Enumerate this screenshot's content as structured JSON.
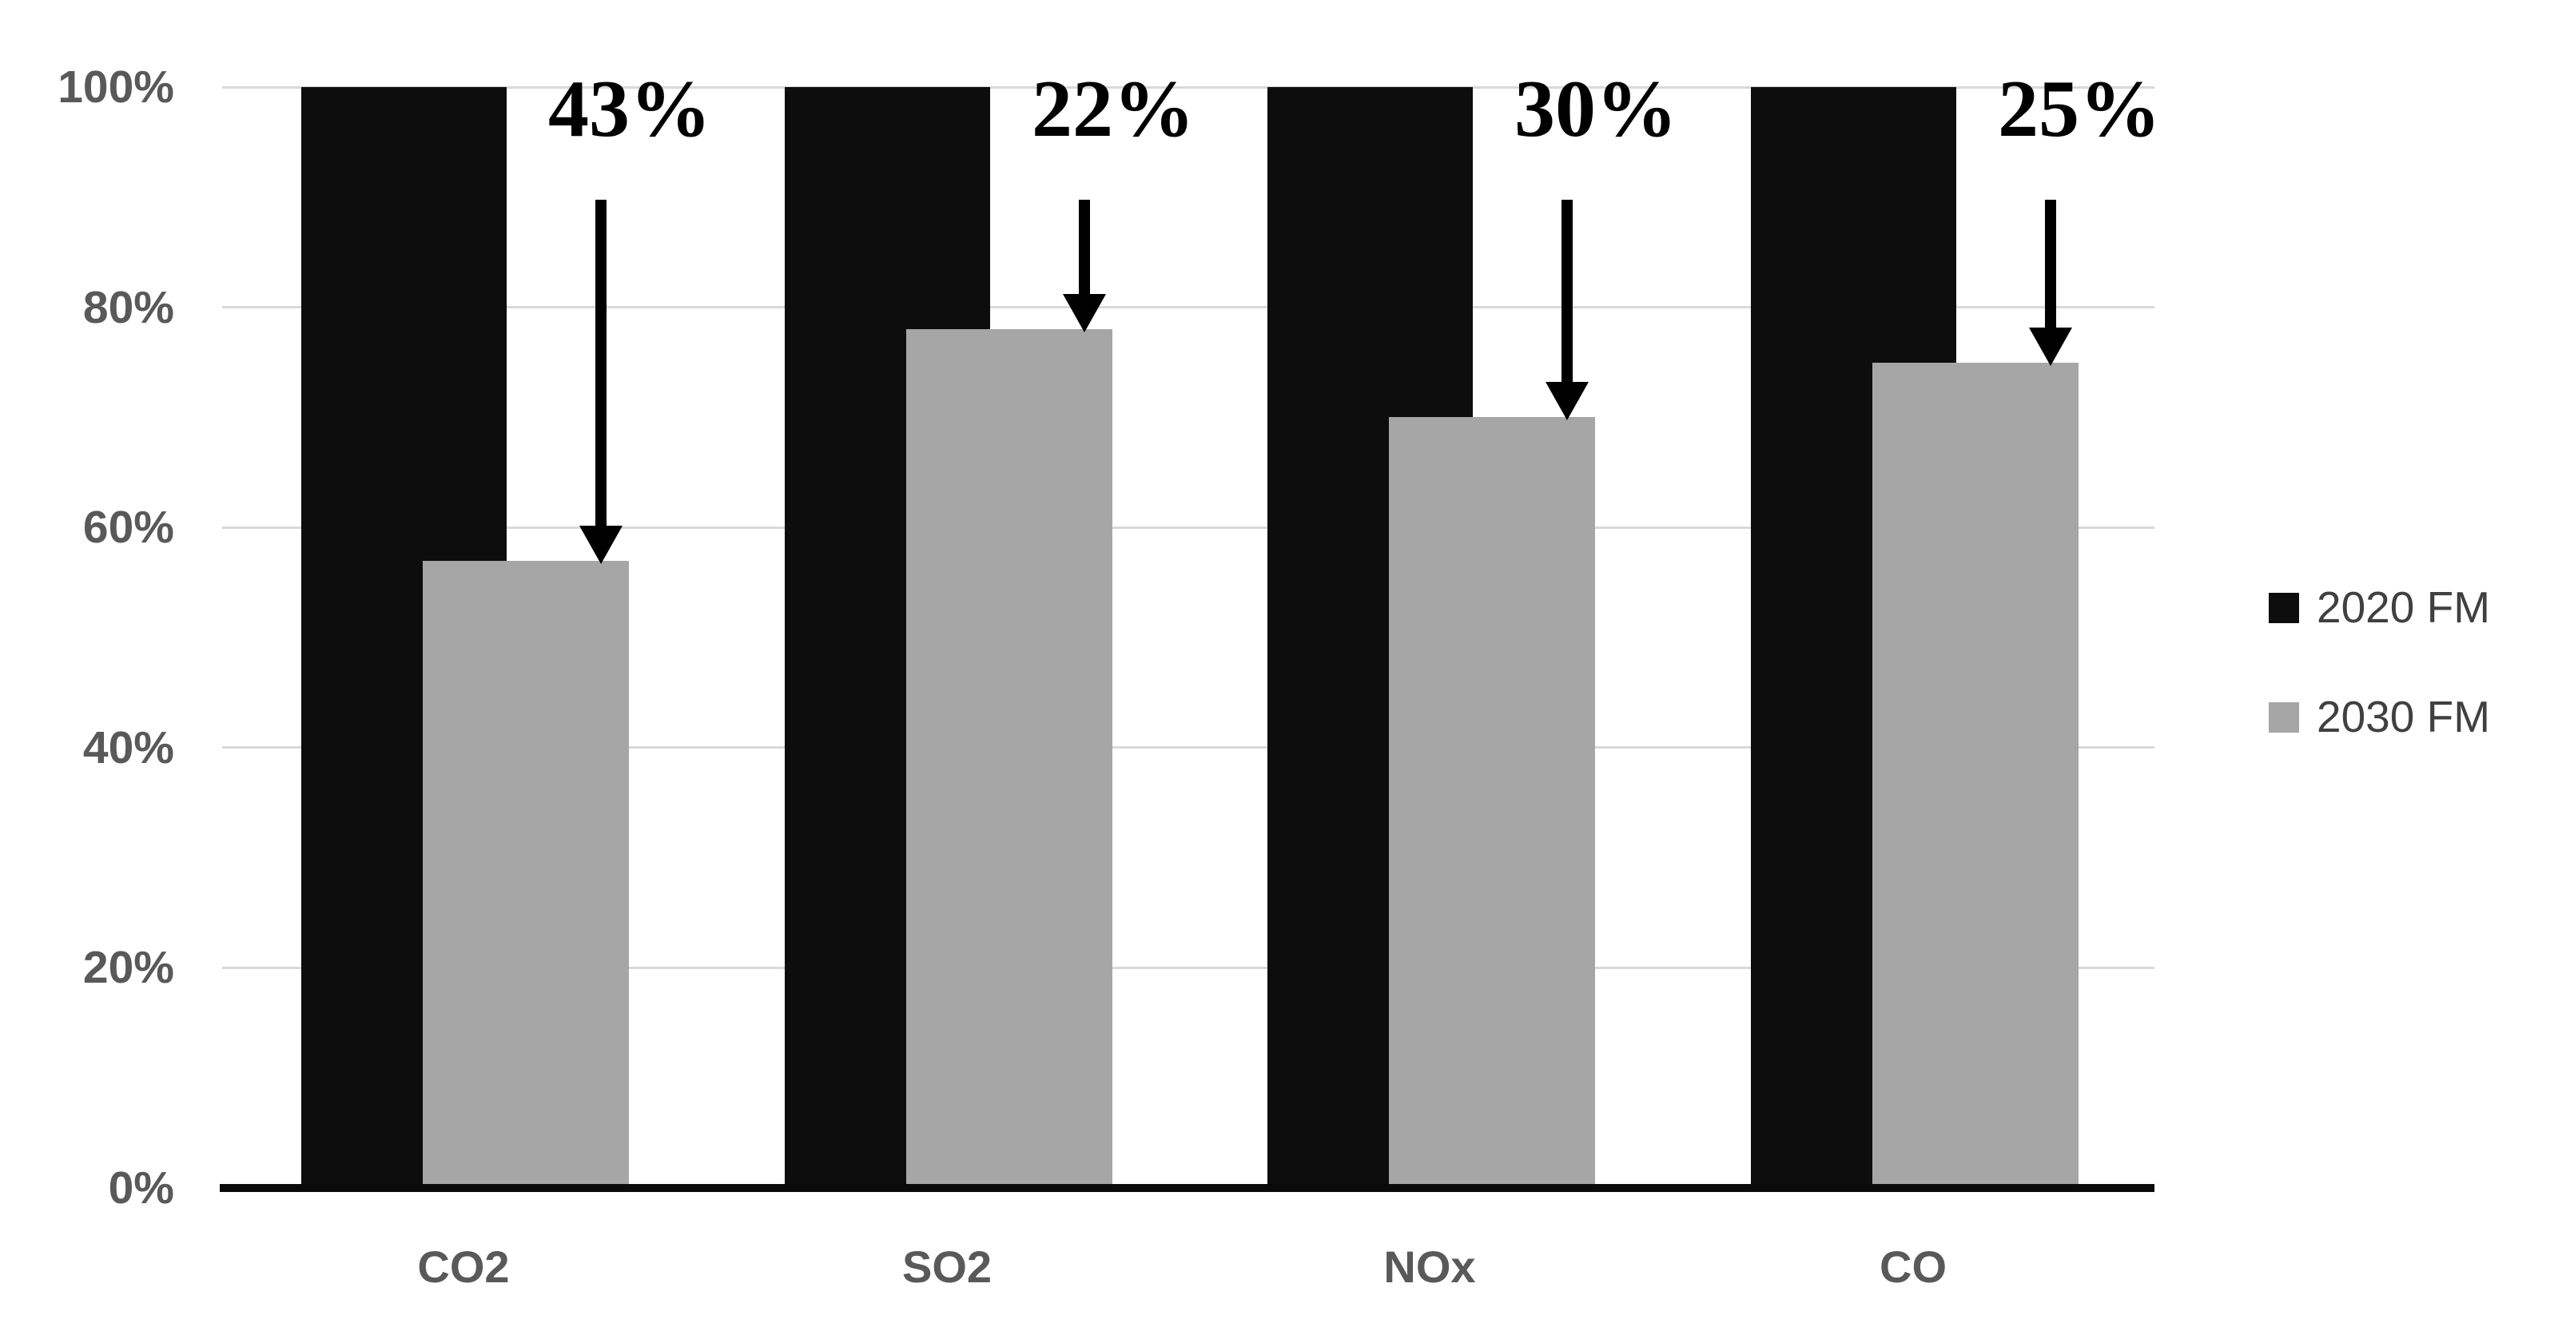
{
  "chart_data": {
    "type": "bar",
    "categories": [
      "CO2",
      "SO2",
      "NOx",
      "CO"
    ],
    "series": [
      {
        "name": "2020 FM",
        "color": "#0d0d0d",
        "values": [
          100,
          100,
          100,
          100
        ]
      },
      {
        "name": "2030 FM",
        "color": "#a6a6a6",
        "values": [
          57,
          78,
          70,
          75
        ]
      }
    ],
    "annotations": [
      {
        "category": "CO2",
        "label": "43%"
      },
      {
        "category": "SO2",
        "label": "22%"
      },
      {
        "category": "NOx",
        "label": "30%"
      },
      {
        "category": "CO",
        "label": "25%"
      }
    ],
    "y_ticks": [
      {
        "label": "0%",
        "value": 0
      },
      {
        "label": "20%",
        "value": 20
      },
      {
        "label": "40%",
        "value": 40
      },
      {
        "label": "60%",
        "value": 60
      },
      {
        "label": "80%",
        "value": 80
      },
      {
        "label": "100%",
        "value": 100
      }
    ],
    "ylim": [
      0,
      100
    ],
    "grid": true,
    "legend_position": "right",
    "colors": {
      "grid": "#d9d9d9",
      "axis_line": "#0a0a0a",
      "tick_text": "#595959",
      "annotation_text": "#000000",
      "legend_text": "#404040"
    }
  }
}
